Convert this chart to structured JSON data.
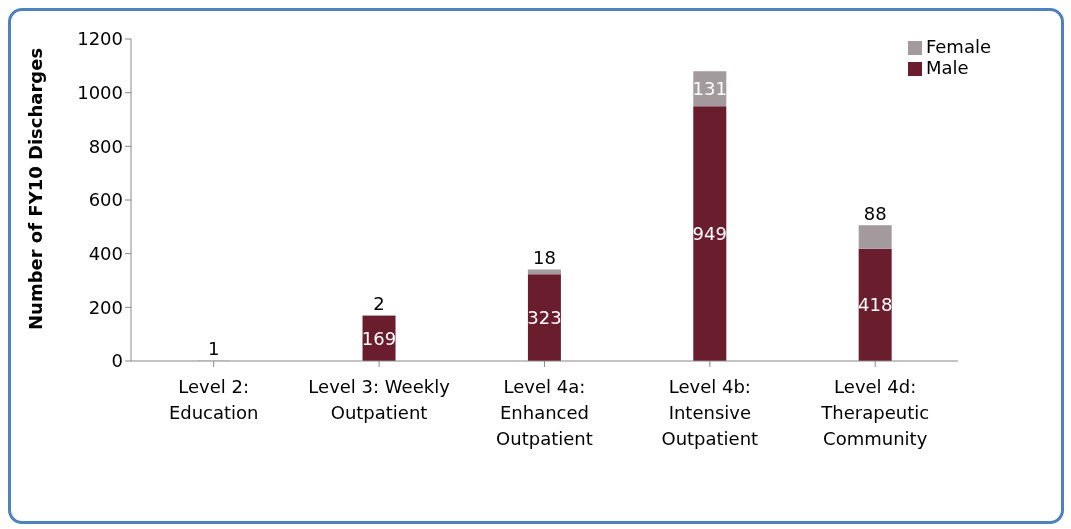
{
  "chart_data": {
    "type": "bar",
    "stacked": true,
    "ylabel": "Number of FY10 Discharges",
    "categories": [
      "Level 2: Education",
      "Level 3: Weekly Outpatient",
      "Level 4a: Enhanced Outpatient",
      "Level 4b: Intensive Outpatient",
      "Level 4d: Therapeutic Community"
    ],
    "series": [
      {
        "name": "Male",
        "color": "#6a1d2c",
        "values": [
          null,
          169,
          323,
          949,
          418
        ]
      },
      {
        "name": "Female",
        "color": "#a29a9d",
        "values": [
          1,
          2,
          18,
          131,
          88
        ]
      }
    ],
    "ylim": [
      0,
      1200
    ],
    "yticks": [
      0,
      200,
      400,
      600,
      800,
      1000,
      1200
    ],
    "grid": false,
    "legend": "top right",
    "data_labels": true
  }
}
